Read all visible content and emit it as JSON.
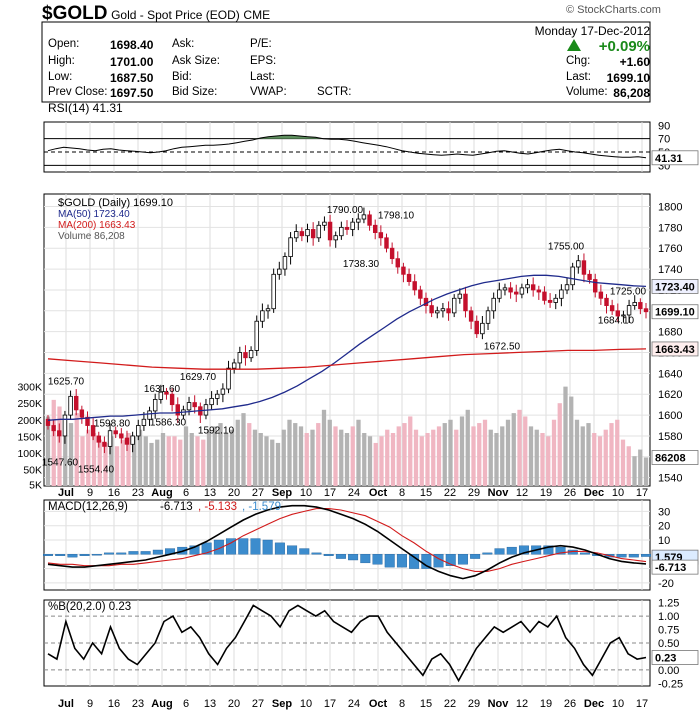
{
  "header": {
    "symbol": "$GOLD",
    "description": "Gold - Spot Price (EOD)",
    "exchange": "CME",
    "logo": "© StockCharts.com",
    "date": "Monday  17-Dec-2012",
    "change_pct": "+0.09%",
    "quote": {
      "open_label": "Open:",
      "open": "1698.40",
      "high_label": "High:",
      "high": "1701.00",
      "low_label": "Low:",
      "low": "1687.50",
      "prevclose_label": "Prev Close:",
      "prevclose": "1697.50",
      "ask_label": "Ask:",
      "asksize_label": "Ask Size:",
      "bid_label": "Bid:",
      "bidsize_label": "Bid Size:",
      "pe_label": "P/E:",
      "eps_label": "EPS:",
      "last_label": "Last:",
      "vwap_label": "VWAP:",
      "sctr_label": "SCTR:",
      "chg_label": "Chg:",
      "chg": "+1.60",
      "last2_label": "Last:",
      "last": "1699.10",
      "volume_label": "Volume:",
      "volume": "86,208"
    }
  },
  "chart_data": [
    {
      "type": "line",
      "panel": "rsi",
      "label": "RSI(14) 41.31",
      "y_ticks": [
        30,
        50,
        70,
        90
      ],
      "ylim": [
        20,
        95
      ],
      "levels": [
        30,
        50,
        70
      ],
      "last_value_tag": "41.31",
      "values": [
        52,
        55,
        57,
        56,
        55,
        53,
        52,
        54,
        55,
        53,
        52,
        51,
        50,
        49,
        50,
        52,
        55,
        57,
        58,
        59,
        60,
        60,
        61,
        62,
        64,
        66,
        68,
        71,
        73,
        74,
        75,
        75,
        74,
        73,
        72,
        70,
        69,
        69,
        68,
        66,
        64,
        62,
        60,
        58,
        55,
        52,
        50,
        48,
        47,
        46,
        45,
        46,
        47,
        46,
        45,
        47,
        49,
        51,
        52,
        50,
        48,
        47,
        49,
        51,
        53,
        54,
        52,
        50,
        49,
        47,
        45,
        44,
        43,
        42,
        42,
        43,
        41.31
      ]
    },
    {
      "type": "candlestick",
      "panel": "price",
      "legend": [
        "$GOLD (Daily) 1699.10",
        "MA(50) 1723.40",
        "MA(200) 1663.43",
        "Volume 86,208"
      ],
      "ylim": [
        1532,
        1812
      ],
      "y_ticks": [
        1540,
        1560,
        1580,
        1600,
        1620,
        1640,
        1660,
        1680,
        1700,
        1720,
        1740,
        1760,
        1780,
        1800
      ],
      "x_tick_labels": [
        "Jul",
        "9",
        "16",
        "23",
        "Aug",
        "6",
        "13",
        "20",
        "27",
        "Sep",
        "10",
        "17",
        "24",
        "Oct",
        "8",
        "15",
        "22",
        "29",
        "Nov",
        "12",
        "19",
        "26",
        "Dec",
        "10",
        "17"
      ],
      "annotations": [
        "1547.60",
        "1554.40",
        "1625.70",
        "1598.80",
        "1586.30",
        "1631.60",
        "1629.70",
        "1592.10",
        "1790.00",
        "1798.10",
        "1738.30",
        "1672.50",
        "1755.00",
        "1725.00",
        "1684.10"
      ],
      "last_price_tag": "1699.10",
      "ma50_tag": "1723.40",
      "ma200_tag": "1663.43",
      "volume_ticks": [
        "5K",
        "50K",
        "100K",
        "150K",
        "200K",
        "250K",
        "300K"
      ],
      "volume_tag": "86208",
      "closes": [
        1590,
        1585,
        1580,
        1600,
        1618,
        1605,
        1598,
        1590,
        1580,
        1574,
        1570,
        1585,
        1582,
        1578,
        1572,
        1580,
        1590,
        1596,
        1604,
        1615,
        1622,
        1620,
        1610,
        1600,
        1605,
        1612,
        1608,
        1600,
        1610,
        1616,
        1620,
        1625,
        1645,
        1650,
        1660,
        1655,
        1662,
        1690,
        1700,
        1702,
        1735,
        1740,
        1752,
        1770,
        1776,
        1772,
        1778,
        1770,
        1782,
        1785,
        1768,
        1772,
        1780,
        1778,
        1785,
        1788,
        1792,
        1782,
        1775,
        1770,
        1760,
        1750,
        1742,
        1735,
        1728,
        1720,
        1712,
        1705,
        1698,
        1700,
        1702,
        1698,
        1712,
        1716,
        1700,
        1690,
        1678,
        1688,
        1700,
        1712,
        1720,
        1722,
        1718,
        1716,
        1722,
        1725,
        1720,
        1718,
        1710,
        1708,
        1712,
        1720,
        1725,
        1742,
        1748,
        1735,
        1730,
        1718,
        1712,
        1705,
        1700,
        1695,
        1696,
        1705,
        1708,
        1702,
        1699.1
      ],
      "ma50": [
        1595,
        1596,
        1596,
        1597,
        1598,
        1599,
        1599,
        1600,
        1601,
        1602,
        1602,
        1603,
        1604,
        1605,
        1606,
        1608,
        1610,
        1613,
        1617,
        1622,
        1628,
        1635,
        1642,
        1650,
        1659,
        1668,
        1676,
        1684,
        1692,
        1699,
        1705,
        1711,
        1716,
        1720,
        1724,
        1727,
        1729,
        1731,
        1733,
        1734,
        1734,
        1733,
        1731,
        1729,
        1727,
        1726,
        1725,
        1724,
        1723.4
      ],
      "ma200": [
        1654,
        1652,
        1650,
        1648,
        1646,
        1645,
        1644,
        1644,
        1644,
        1645,
        1646,
        1648,
        1650,
        1652,
        1654,
        1656,
        1658,
        1659,
        1660,
        1661,
        1662,
        1662,
        1663,
        1663.43
      ],
      "volume": [
        210,
        260,
        240,
        200,
        190,
        220,
        150,
        170,
        160,
        140,
        130,
        150,
        120,
        140,
        160,
        150,
        170,
        150,
        130,
        140,
        160,
        150,
        150,
        140,
        180,
        160,
        150,
        140,
        170,
        180,
        190,
        160,
        170,
        200,
        220,
        190,
        170,
        160,
        150,
        140,
        130,
        170,
        200,
        190,
        180,
        160,
        170,
        190,
        230,
        200,
        180,
        170,
        160,
        180,
        200,
        160,
        150,
        130,
        150,
        170,
        160,
        180,
        190,
        210,
        170,
        150,
        160,
        170,
        180,
        190,
        200,
        170,
        210,
        230,
        180,
        190,
        200,
        170,
        160,
        180,
        200,
        220,
        230,
        210,
        180,
        170,
        160,
        150,
        200,
        250,
        300,
        270,
        200,
        180,
        190,
        160,
        150,
        170,
        190,
        200,
        140,
        120,
        90,
        110,
        86
      ]
    },
    {
      "type": "line",
      "panel": "macd",
      "label": "MACD(12,26,9)",
      "values_text": [
        "-6.713",
        "-5.133",
        "-1.579"
      ],
      "y_ticks": [
        -20,
        -10,
        0,
        10,
        20,
        30
      ],
      "ylim": [
        -25,
        38
      ],
      "tags": [
        "1.579",
        "-6.713"
      ],
      "macd": [
        -7,
        -8,
        -9,
        -9,
        -8,
        -7,
        -6,
        -5,
        -4,
        -2,
        0,
        2,
        5,
        9,
        14,
        19,
        24,
        28,
        31,
        33,
        34,
        34,
        33,
        31,
        28,
        25,
        21,
        16,
        10,
        4,
        -2,
        -8,
        -12,
        -15,
        -17,
        -15,
        -11,
        -6,
        -2,
        1,
        3,
        5,
        6,
        5,
        3,
        0,
        -3,
        -5,
        -6,
        -6.713
      ],
      "signal": [
        -6,
        -7,
        -7,
        -8,
        -8,
        -8,
        -7,
        -7,
        -6,
        -5,
        -4,
        -3,
        -1,
        1,
        4,
        8,
        13,
        17,
        21,
        25,
        28,
        30,
        32,
        32,
        31,
        29,
        27,
        23,
        19,
        13,
        8,
        2,
        -3,
        -7,
        -10,
        -12,
        -12,
        -10,
        -7,
        -5,
        -3,
        -1,
        1,
        2,
        2,
        1,
        -1,
        -3,
        -4,
        -5.133
      ],
      "histogram": [
        -1,
        -1,
        -2,
        -1,
        0,
        1,
        1,
        2,
        2,
        3,
        4,
        5,
        6,
        8,
        10,
        11,
        11,
        11,
        10,
        8,
        6,
        4,
        1,
        -1,
        -3,
        -4,
        -6,
        -7,
        -9,
        -9,
        -10,
        -10,
        -9,
        -8,
        -7,
        -3,
        1,
        4,
        5,
        6,
        6,
        6,
        5,
        3,
        1,
        -1,
        -2,
        -2,
        -2,
        -1.579
      ]
    },
    {
      "type": "line",
      "panel": "percentb",
      "label": "%B(20,2.0) 0.23",
      "y_ticks": [
        -0.25,
        0.0,
        0.25,
        0.5,
        0.75,
        1.0,
        1.25
      ],
      "ylim": [
        -0.3,
        1.3
      ],
      "levels": [
        0,
        0.5,
        1.0
      ],
      "last_value_tag": "0.23",
      "values": [
        0.3,
        0.2,
        0.9,
        0.4,
        0.2,
        0.5,
        0.3,
        0.8,
        0.4,
        0.2,
        0.1,
        0.3,
        0.5,
        0.9,
        1.0,
        0.7,
        0.8,
        0.6,
        0.3,
        0.1,
        0.4,
        0.6,
        0.9,
        1.2,
        1.1,
        1.0,
        0.8,
        1.1,
        1.2,
        1.1,
        1.0,
        1.1,
        0.9,
        0.8,
        0.7,
        0.9,
        1.0,
        1.0,
        0.7,
        0.5,
        0.3,
        0.1,
        -0.1,
        0.2,
        0.3,
        0.1,
        -0.2,
        0.1,
        0.4,
        0.6,
        0.8,
        0.7,
        0.8,
        0.9,
        0.7,
        0.9,
        0.8,
        1.0,
        0.6,
        0.4,
        0.1,
        -0.1,
        0.2,
        0.5,
        0.6,
        0.3,
        0.2,
        0.23
      ]
    }
  ]
}
